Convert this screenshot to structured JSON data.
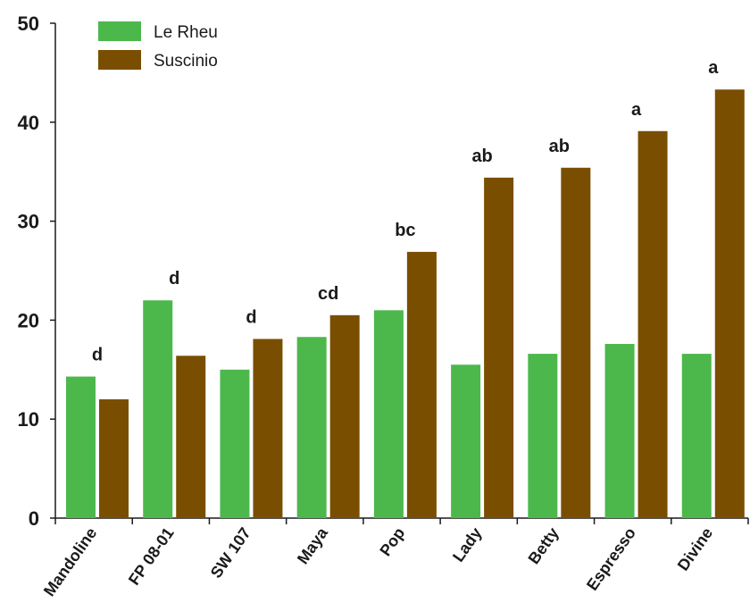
{
  "chart_data": {
    "type": "bar",
    "categories": [
      "Mandoline",
      "FP 08-01",
      "SW 107",
      "Maya",
      "Pop",
      "Lady",
      "Betty",
      "Espresso",
      "Divine"
    ],
    "series": [
      {
        "name": "Le Rheu",
        "color": "#4cb84c",
        "values": [
          14.3,
          22.0,
          15.0,
          18.3,
          21.0,
          15.5,
          16.6,
          17.6,
          16.6
        ]
      },
      {
        "name": "Suscinio",
        "color": "#7a4e00",
        "values": [
          12.0,
          16.4,
          18.1,
          20.5,
          26.9,
          34.4,
          35.4,
          39.1,
          43.3
        ]
      }
    ],
    "significance": [
      "d",
      "d",
      "d",
      "cd",
      "bc",
      "ab",
      "ab",
      "a",
      "a"
    ],
    "y_ticks": [
      0,
      10,
      20,
      30,
      40,
      50
    ],
    "ylim": [
      0,
      50
    ],
    "title": "",
    "xlabel": "",
    "ylabel": "",
    "grid": false,
    "legend_position": "top-left"
  }
}
